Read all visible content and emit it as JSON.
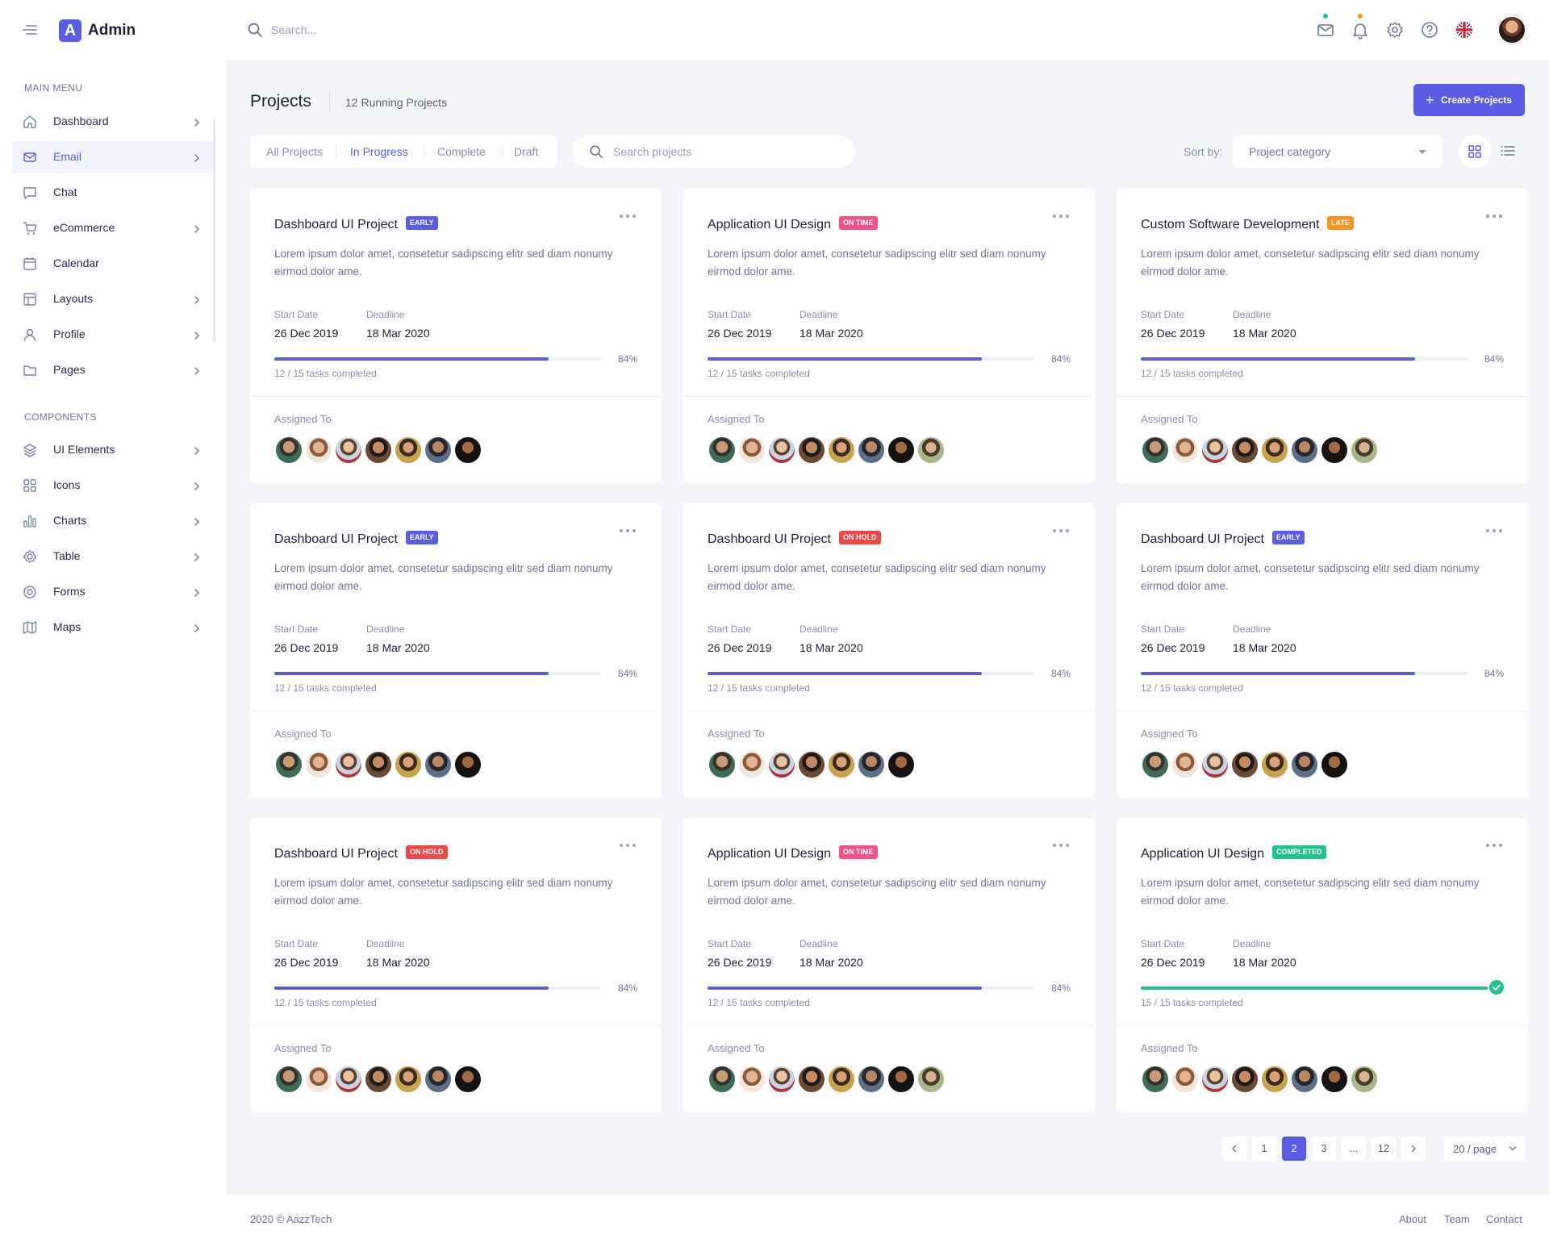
{
  "app": {
    "logo_letter": "A",
    "name": "Admin"
  },
  "header": {
    "search_placeholder": "Search...",
    "icons": [
      "mail-icon",
      "bell-icon",
      "gear-icon",
      "help-icon",
      "uk-flag-icon"
    ],
    "mail_dot_color": "#21c190",
    "bell_dot_color": "#f7931e"
  },
  "sidebar": {
    "main_menu_title": "MAIN MENU",
    "main_menu": [
      {
        "label": "Dashboard",
        "icon": "home-icon",
        "has_chevron": true,
        "active": false
      },
      {
        "label": "Email",
        "icon": "mail-icon",
        "has_chevron": true,
        "active": true
      },
      {
        "label": "Chat",
        "icon": "chat-icon",
        "has_chevron": false,
        "active": false
      },
      {
        "label": "eCommerce",
        "icon": "cart-icon",
        "has_chevron": true,
        "active": false
      },
      {
        "label": "Calendar",
        "icon": "calendar-icon",
        "has_chevron": false,
        "active": false
      },
      {
        "label": "Layouts",
        "icon": "layout-icon",
        "has_chevron": true,
        "active": false
      },
      {
        "label": "Profile",
        "icon": "user-icon",
        "has_chevron": true,
        "active": false
      },
      {
        "label": "Pages",
        "icon": "folder-icon",
        "has_chevron": true,
        "active": false
      }
    ],
    "components_title": "COMPONENTS",
    "components": [
      {
        "label": "UI Elements",
        "icon": "layers-icon",
        "has_chevron": true
      },
      {
        "label": "Icons",
        "icon": "grid-icon",
        "has_chevron": true
      },
      {
        "label": "Charts",
        "icon": "bar-chart-icon",
        "has_chevron": true
      },
      {
        "label": "Table",
        "icon": "table-icon",
        "has_chevron": true
      },
      {
        "label": "Forms",
        "icon": "form-icon",
        "has_chevron": true
      },
      {
        "label": "Maps",
        "icon": "map-icon",
        "has_chevron": true
      }
    ]
  },
  "page": {
    "title": "Projects",
    "running": "12 Running Projects",
    "create_label": "Create Projects",
    "tabs": [
      {
        "label": "All Projects",
        "active": false
      },
      {
        "label": "In Progress",
        "active": true
      },
      {
        "label": "Complete",
        "active": false
      },
      {
        "label": "Draft",
        "active": false
      }
    ],
    "search_placeholder": "Search projects",
    "sort_label": "Sort by:",
    "sort_value": "Project category"
  },
  "badge_colors": {
    "EARLY": "#5b5be8",
    "ON TIME": "#f5508a",
    "LATE": "#f7931e",
    "ON HOLD": "#f04848",
    "COMPLETED": "#21c190"
  },
  "labels": {
    "start_date": "Start Date",
    "deadline": "Deadline",
    "assigned_to": "Assigned To"
  },
  "projects": [
    {
      "title": "Dashboard UI Project",
      "badge": "EARLY",
      "desc": "Lorem ipsum dolor amet, consetetur sadipscing elitr sed diam nonumy eirmod dolor ame.",
      "start": "26 Dec 2019",
      "deadline": "18 Mar 2020",
      "progress": 84,
      "progress_label": "84%",
      "tasks": "12 / 15 tasks completed",
      "assignees": 7
    },
    {
      "title": "Application UI Design",
      "badge": "ON TIME",
      "desc": "Lorem ipsum dolor amet, consetetur sadipscing elitr sed diam nonumy eirmod dolor ame.",
      "start": "26 Dec 2019",
      "deadline": "18 Mar 2020",
      "progress": 84,
      "progress_label": "84%",
      "tasks": "12 / 15 tasks completed",
      "assignees": 8
    },
    {
      "title": "Custom Software Development",
      "badge": "LATE",
      "desc": "Lorem ipsum dolor amet, consetetur sadipscing elitr sed diam nonumy eirmod dolor ame.",
      "start": "26 Dec 2019",
      "deadline": "18 Mar 2020",
      "progress": 84,
      "progress_label": "84%",
      "tasks": "12 / 15 tasks completed",
      "assignees": 8
    },
    {
      "title": "Dashboard UI Project",
      "badge": "EARLY",
      "desc": "Lorem ipsum dolor amet, consetetur sadipscing elitr sed diam nonumy eirmod dolor ame.",
      "start": "26 Dec 2019",
      "deadline": "18 Mar 2020",
      "progress": 84,
      "progress_label": "84%",
      "tasks": "12 / 15 tasks completed",
      "assignees": 7
    },
    {
      "title": "Dashboard UI Project",
      "badge": "ON HOLD",
      "desc": "Lorem ipsum dolor amet, consetetur sadipscing elitr sed diam nonumy eirmod dolor ame.",
      "start": "26 Dec 2019",
      "deadline": "18 Mar 2020",
      "progress": 84,
      "progress_label": "84%",
      "tasks": "12 / 15 tasks completed",
      "assignees": 7
    },
    {
      "title": "Dashboard UI Project",
      "badge": "EARLY",
      "desc": "Lorem ipsum dolor amet, consetetur sadipscing elitr sed diam nonumy eirmod dolor ame.",
      "start": "26 Dec 2019",
      "deadline": "18 Mar 2020",
      "progress": 84,
      "progress_label": "84%",
      "tasks": "12 / 15 tasks completed",
      "assignees": 7
    },
    {
      "title": "Dashboard UI Project",
      "badge": "ON HOLD",
      "desc": "Lorem ipsum dolor amet, consetetur sadipscing elitr sed diam nonumy eirmod dolor ame.",
      "start": "26 Dec 2019",
      "deadline": "18 Mar 2020",
      "progress": 84,
      "progress_label": "84%",
      "tasks": "12 / 15 tasks completed",
      "assignees": 7
    },
    {
      "title": "Application UI Design",
      "badge": "ON TIME",
      "desc": "Lorem ipsum dolor amet, consetetur sadipscing elitr sed diam nonumy eirmod dolor ame.",
      "start": "26 Dec 2019",
      "deadline": "18 Mar 2020",
      "progress": 84,
      "progress_label": "84%",
      "tasks": "12 / 15 tasks completed",
      "assignees": 8
    },
    {
      "title": "Application UI Design",
      "badge": "COMPLETED",
      "desc": "Lorem ipsum dolor amet, consetetur sadipscing elitr sed diam nonumy eirmod dolor ame.",
      "start": "26 Dec 2019",
      "deadline": "18 Mar 2020",
      "progress": 100,
      "progress_label": "",
      "tasks": "15 / 15 tasks completed",
      "assignees": 8
    }
  ],
  "progress_colors": {
    "in_progress": "#5b5be8",
    "complete": "#21c190"
  },
  "pagination": {
    "pages": [
      "1",
      "2",
      "3",
      "...",
      "12"
    ],
    "active": "2",
    "per_page": "20 / page"
  },
  "footer": {
    "copyright": "2020 © AazzTech",
    "links": [
      "About",
      "Team",
      "Contact"
    ]
  }
}
